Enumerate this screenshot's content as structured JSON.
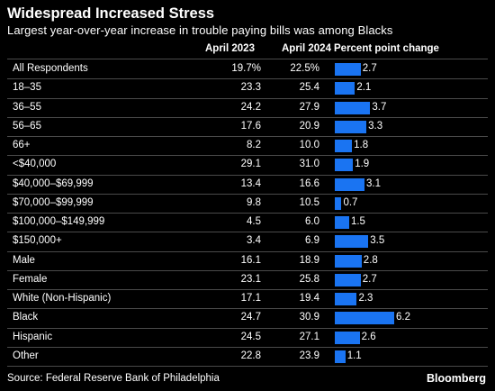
{
  "title": "Widespread Increased Stress",
  "subtitle": "Largest year-over-year increase in trouble paying bills was among Blacks",
  "source": "Source: Federal Reserve Bank of Philadelphia",
  "brand": "Bloomberg",
  "colors": {
    "bar": "#1a74f2",
    "background": "#000000"
  },
  "chart_data": {
    "type": "table",
    "columns": [
      "",
      "April 2023",
      "April 2024",
      "Percent point change"
    ],
    "rows": [
      {
        "label": "All Respondents",
        "a2023": "19.7%",
        "a2024": "22.5%",
        "change": 2.7
      },
      {
        "label": "18–35",
        "a2023": "23.3",
        "a2024": "25.4",
        "change": 2.1
      },
      {
        "label": "36–55",
        "a2023": "24.2",
        "a2024": "27.9",
        "change": 3.7
      },
      {
        "label": "56–65",
        "a2023": "17.6",
        "a2024": "20.9",
        "change": 3.3
      },
      {
        "label": "66+",
        "a2023": "8.2",
        "a2024": "10.0",
        "change": 1.8
      },
      {
        "label": "<$40,000",
        "a2023": "29.1",
        "a2024": "31.0",
        "change": 1.9
      },
      {
        "label": "$40,000–$69,999",
        "a2023": "13.4",
        "a2024": "16.6",
        "change": 3.1
      },
      {
        "label": "$70,000–$99,999",
        "a2023": "9.8",
        "a2024": "10.5",
        "change": 0.7
      },
      {
        "label": "$100,000–$149,999",
        "a2023": "4.5",
        "a2024": "6.0",
        "change": 1.5
      },
      {
        "label": "$150,000+",
        "a2023": "3.4",
        "a2024": "6.9",
        "change": 3.5
      },
      {
        "label": "Male",
        "a2023": "16.1",
        "a2024": "18.9",
        "change": 2.8
      },
      {
        "label": "Female",
        "a2023": "23.1",
        "a2024": "25.8",
        "change": 2.7
      },
      {
        "label": "White (Non-Hispanic)",
        "a2023": "17.1",
        "a2024": "19.4",
        "change": 2.3
      },
      {
        "label": "Black",
        "a2023": "24.7",
        "a2024": "30.9",
        "change": 6.2
      },
      {
        "label": "Hispanic",
        "a2023": "24.5",
        "a2024": "27.1",
        "change": 2.6
      },
      {
        "label": "Other",
        "a2023": "22.8",
        "a2024": "23.9",
        "change": 1.1
      }
    ],
    "bar_max": 6.2
  }
}
